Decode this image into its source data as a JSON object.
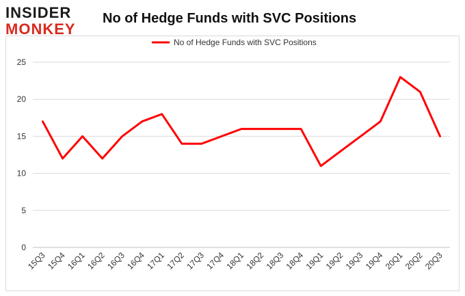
{
  "logo": {
    "line1": "INSIDER",
    "line2": "MONKEY"
  },
  "chart_data": {
    "type": "line",
    "title": "No of Hedge Funds with SVC Positions",
    "xlabel": "",
    "ylabel": "",
    "categories": [
      "15Q3",
      "15Q4",
      "16Q1",
      "16Q2",
      "16Q3",
      "16Q4",
      "17Q1",
      "17Q2",
      "17Q3",
      "17Q4",
      "18Q1",
      "18Q2",
      "18Q3",
      "18Q4",
      "19Q1",
      "19Q2",
      "19Q3",
      "19Q4",
      "20Q1",
      "20Q2",
      "20Q3"
    ],
    "series": [
      {
        "name": "No of Hedge Funds with SVC Positions",
        "values": [
          17,
          12,
          15,
          12,
          15,
          17,
          18,
          14,
          14,
          15,
          16,
          16,
          16,
          16,
          11,
          13,
          15,
          17,
          23,
          21,
          15
        ],
        "color": "#ff0000"
      }
    ],
    "ylim": [
      0,
      25
    ],
    "yticks": [
      0,
      5,
      10,
      15,
      20,
      25
    ],
    "grid": true,
    "legend_position": "top-center"
  }
}
